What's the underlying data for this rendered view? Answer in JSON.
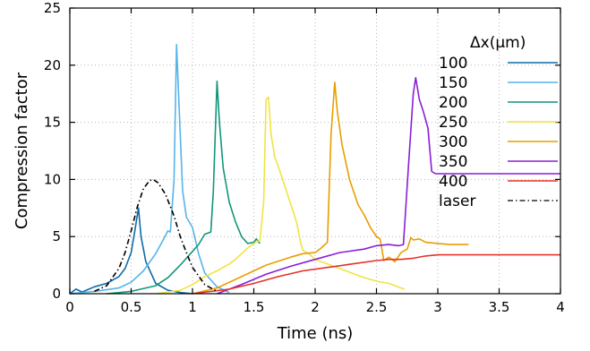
{
  "chart_data": {
    "type": "line",
    "title": "",
    "xlabel": "Time (ns)",
    "ylabel": "Compression factor",
    "xlim": [
      0,
      4
    ],
    "ylim": [
      0,
      25
    ],
    "xticks": [
      0,
      0.5,
      1,
      1.5,
      2,
      2.5,
      3,
      3.5,
      4
    ],
    "xtick_labels": [
      "0",
      "0.5",
      "1",
      "1.5",
      "2",
      "2.5",
      "3",
      "3.5",
      "4"
    ],
    "yticks": [
      0,
      5,
      10,
      15,
      20,
      25
    ],
    "ytick_labels": [
      "0",
      "5",
      "10",
      "15",
      "20",
      "25"
    ],
    "grid": true,
    "legend_title": "Δx(μm)",
    "legend_position": "top-right",
    "series": [
      {
        "name": "100",
        "color": "#0e6ba8",
        "dash": "solid",
        "x": [
          0,
          0.05,
          0.1,
          0.2,
          0.3,
          0.4,
          0.45,
          0.5,
          0.53,
          0.56,
          0.58,
          0.62,
          0.7,
          0.8,
          0.9,
          1.0
        ],
        "y": [
          0,
          0.4,
          0.15,
          0.6,
          0.9,
          1.5,
          2.2,
          3.6,
          5.5,
          7.5,
          5.0,
          2.8,
          0.9,
          0.3,
          0.1,
          0
        ]
      },
      {
        "name": "150",
        "color": "#56b4e9",
        "dash": "solid",
        "x": [
          0,
          0.2,
          0.4,
          0.5,
          0.6,
          0.7,
          0.75,
          0.8,
          0.82,
          0.85,
          0.87,
          0.9,
          0.92,
          0.95,
          1.0,
          1.05,
          1.1,
          1.2,
          1.3
        ],
        "y": [
          0,
          0.2,
          0.5,
          1.0,
          2.0,
          3.5,
          4.5,
          5.5,
          5.4,
          10,
          21.8,
          14,
          9,
          6.7,
          5.8,
          3.5,
          1.8,
          0.6,
          0.1
        ]
      },
      {
        "name": "200",
        "color": "#11967a",
        "dash": "solid",
        "x": [
          0.3,
          0.5,
          0.7,
          0.8,
          0.9,
          1.0,
          1.05,
          1.1,
          1.15,
          1.17,
          1.2,
          1.22,
          1.25,
          1.3,
          1.35,
          1.4,
          1.45,
          1.5,
          1.52,
          1.55
        ],
        "y": [
          0,
          0.2,
          0.7,
          1.4,
          2.5,
          3.7,
          4.3,
          5.2,
          5.4,
          9,
          18.6,
          15,
          11,
          8,
          6.3,
          5.0,
          4.4,
          4.5,
          4.8,
          4.4
        ]
      },
      {
        "name": "250",
        "color": "#f0e442",
        "dash": "solid",
        "x": [
          0.7,
          0.9,
          1.0,
          1.1,
          1.2,
          1.3,
          1.35,
          1.4,
          1.45,
          1.5,
          1.55,
          1.58,
          1.6,
          1.62,
          1.64,
          1.67,
          1.72,
          1.78,
          1.85,
          1.88,
          1.9,
          1.95,
          2.0,
          2.1,
          2.2,
          2.3,
          2.4,
          2.5,
          2.6,
          2.7,
          2.73
        ],
        "y": [
          0,
          0.3,
          0.8,
          1.5,
          2.0,
          2.6,
          3.0,
          3.5,
          4.0,
          4.4,
          4.7,
          8,
          17,
          17.2,
          14,
          12,
          10.5,
          8.5,
          6.2,
          4.5,
          3.8,
          3.5,
          3.0,
          2.6,
          2.2,
          1.8,
          1.4,
          1.1,
          0.9,
          0.5,
          0.4
        ]
      },
      {
        "name": "300",
        "color": "#e69f00",
        "dash": "solid",
        "x": [
          1.0,
          1.2,
          1.4,
          1.6,
          1.8,
          1.9,
          2.0,
          2.05,
          2.1,
          2.13,
          2.16,
          2.18,
          2.22,
          2.28,
          2.35,
          2.4,
          2.45,
          2.5,
          2.53,
          2.56,
          2.6,
          2.65,
          2.7,
          2.75,
          2.78,
          2.8,
          2.85,
          2.9,
          3.0,
          3.1,
          3.25
        ],
        "y": [
          0,
          0.5,
          1.5,
          2.5,
          3.2,
          3.5,
          3.6,
          4.0,
          4.5,
          14,
          18.5,
          16,
          13,
          10,
          7.8,
          6.9,
          5.8,
          5.0,
          4.8,
          2.9,
          3.2,
          2.8,
          3.6,
          3.9,
          4.9,
          4.7,
          4.8,
          4.5,
          4.4,
          4.3,
          4.3
        ]
      },
      {
        "name": "350",
        "color": "#8a1fd6",
        "dash": "solid",
        "x": [
          1.2,
          1.4,
          1.6,
          1.8,
          2.0,
          2.2,
          2.4,
          2.5,
          2.6,
          2.68,
          2.72,
          2.76,
          2.8,
          2.82,
          2.85,
          2.88,
          2.92,
          2.95,
          2.98,
          3.0,
          3.5,
          4.0
        ],
        "y": [
          0,
          0.8,
          1.7,
          2.4,
          3.0,
          3.6,
          3.9,
          4.2,
          4.3,
          4.2,
          4.3,
          11,
          17.5,
          18.9,
          17,
          16,
          14.5,
          10.7,
          10.5,
          10.5,
          10.5,
          10.5
        ]
      },
      {
        "name": "400",
        "color": "#e53228",
        "dash": "solid",
        "x": [
          1.0,
          1.3,
          1.5,
          1.7,
          1.9,
          2.1,
          2.3,
          2.5,
          2.6,
          2.7,
          2.8,
          2.9,
          3.0,
          3.5,
          4.0
        ],
        "y": [
          0,
          0.4,
          0.9,
          1.5,
          2.0,
          2.3,
          2.6,
          2.9,
          3.0,
          3.0,
          3.1,
          3.3,
          3.4,
          3.4,
          3.4
        ]
      },
      {
        "name": "laser",
        "color": "#000000",
        "dash": "dashdot",
        "x": [
          0.2,
          0.3,
          0.4,
          0.45,
          0.5,
          0.55,
          0.6,
          0.65,
          0.68,
          0.72,
          0.78,
          0.85,
          0.9,
          0.95,
          1.0,
          1.1,
          1.2
        ],
        "y": [
          0.2,
          0.7,
          2.2,
          3.6,
          5.5,
          7.6,
          9.2,
          9.9,
          10.0,
          9.7,
          8.7,
          6.8,
          5.0,
          3.6,
          2.3,
          0.8,
          0.2
        ]
      }
    ]
  }
}
